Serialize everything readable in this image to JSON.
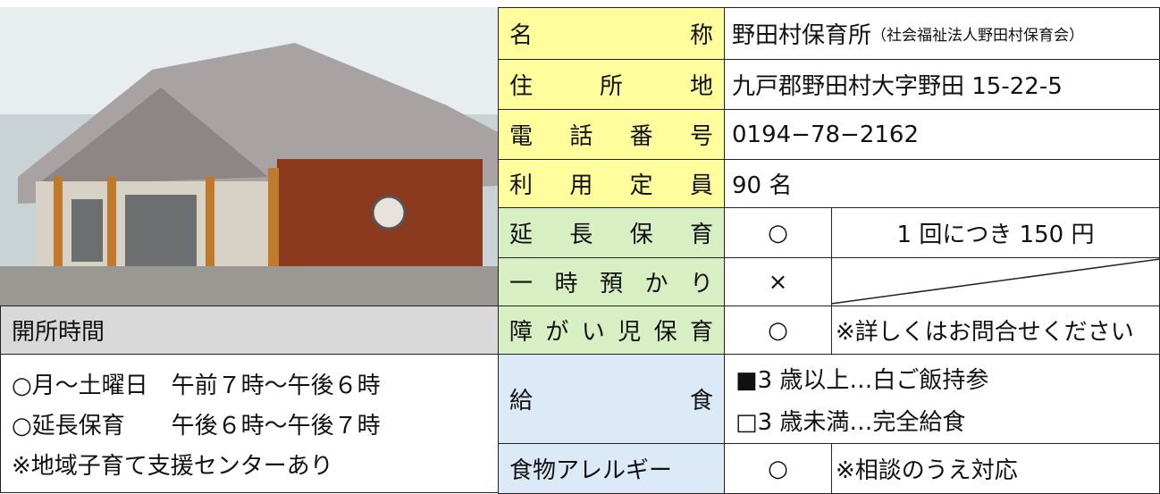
{
  "opening_hours": {
    "title": "開所時間",
    "lines": [
      "○月～土曜日　午前７時～午後６時",
      "○延長保育　　午後６時～午後７時",
      "※地域子育て支援センターあり"
    ]
  },
  "rows": [
    {
      "label": "名称",
      "value": "野田村保育所",
      "note": "（社会福祉法人野田村保育会）"
    },
    {
      "label": "住所地",
      "value": "九戸郡野田村大字野田 15-22-5"
    },
    {
      "label": "電話番号",
      "value": "0194−78−2162"
    },
    {
      "label": "利用定員",
      "value": "90 名"
    },
    {
      "label": "延長保育",
      "mark": "○",
      "detail": "1 回につき 150 円"
    },
    {
      "label": "一時預かり",
      "mark": "×"
    },
    {
      "label": "障がい児保育",
      "mark": "○",
      "detail": "※詳しくはお問合せください"
    },
    {
      "label": "給食",
      "lines": [
        "■3 歳以上…白ご飯持参",
        "□3 歳未満…完全給食"
      ]
    },
    {
      "label": "食物アレルギー",
      "mark": "○",
      "detail": "※相談のうえ対応"
    }
  ]
}
